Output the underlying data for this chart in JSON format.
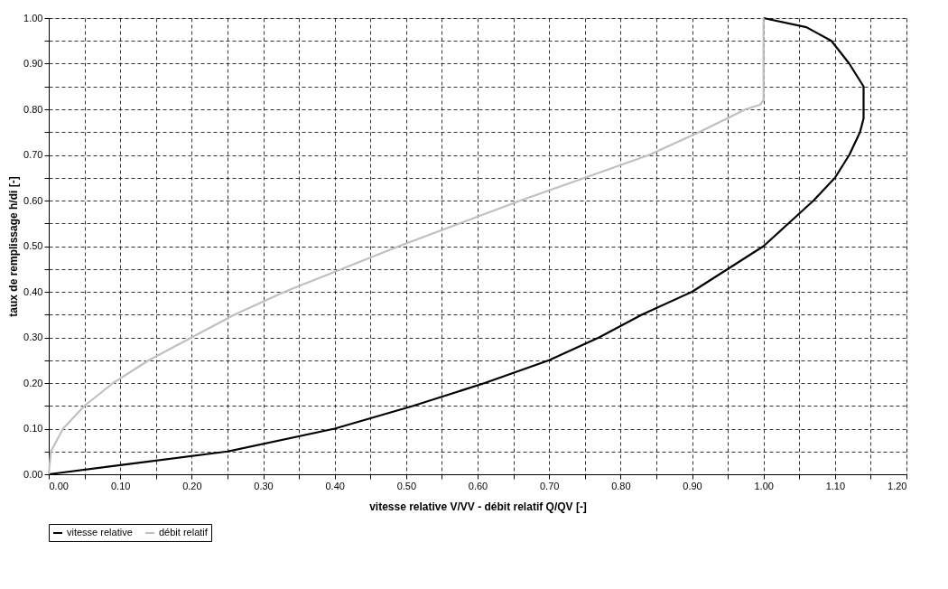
{
  "chart_data": {
    "type": "line",
    "xlabel": "vitesse relative V/VV - débit relatif Q/QV [-]",
    "ylabel": "taux de remplissage h/di [-]",
    "series": [
      {
        "name": "vitesse relative",
        "color": "#000000",
        "x": [
          0,
          0.1,
          0.25,
          0.4,
          0.51,
          0.61,
          0.7,
          0.77,
          0.83,
          0.9,
          0.95,
          1.0,
          1.035,
          1.07,
          1.1,
          1.12,
          1.135,
          1.14,
          1.14,
          1.12,
          1.095,
          1.06,
          1.0
        ],
        "values": [
          0,
          0.02,
          0.05,
          0.1,
          0.15,
          0.2,
          0.25,
          0.3,
          0.35,
          0.4,
          0.45,
          0.5,
          0.55,
          0.6,
          0.65,
          0.7,
          0.75,
          0.78,
          0.85,
          0.9,
          0.95,
          0.98,
          1.0
        ]
      },
      {
        "name": "débit relatif",
        "color": "#c0c0c0",
        "x": [
          0,
          0.003,
          0.02,
          0.05,
          0.09,
          0.14,
          0.2,
          0.26,
          0.33,
          0.41,
          0.49,
          0.575,
          0.66,
          0.75,
          0.84,
          0.91,
          0.975,
          0.995,
          1.0,
          1.0
        ],
        "values": [
          0,
          0.05,
          0.1,
          0.15,
          0.2,
          0.25,
          0.3,
          0.35,
          0.4,
          0.45,
          0.5,
          0.55,
          0.6,
          0.65,
          0.7,
          0.75,
          0.8,
          0.81,
          0.82,
          1.0
        ]
      }
    ],
    "xlim": [
      0,
      1.2
    ],
    "xticks": [
      {
        "value": 0,
        "label": "0.00"
      },
      {
        "value": 0.05,
        "label": null
      },
      {
        "value": 0.1,
        "label": "0.10"
      },
      {
        "value": 0.15,
        "label": null
      },
      {
        "value": 0.2,
        "label": "0.20"
      },
      {
        "value": 0.25,
        "label": null
      },
      {
        "value": 0.3,
        "label": "0.30"
      },
      {
        "value": 0.35,
        "label": null
      },
      {
        "value": 0.4,
        "label": "0.40"
      },
      {
        "value": 0.45,
        "label": null
      },
      {
        "value": 0.5,
        "label": "0.50"
      },
      {
        "value": 0.55,
        "label": null
      },
      {
        "value": 0.6,
        "label": "0.60"
      },
      {
        "value": 0.65,
        "label": null
      },
      {
        "value": 0.7,
        "label": "0.70"
      },
      {
        "value": 0.75,
        "label": null
      },
      {
        "value": 0.8,
        "label": "0.80"
      },
      {
        "value": 0.85,
        "label": null
      },
      {
        "value": 0.9,
        "label": "0.90"
      },
      {
        "value": 0.95,
        "label": null
      },
      {
        "value": 1.0,
        "label": "1.00"
      },
      {
        "value": 1.05,
        "label": null
      },
      {
        "value": 1.1,
        "label": "1.10"
      },
      {
        "value": 1.15,
        "label": null
      },
      {
        "value": 1.2,
        "label": "1.20"
      }
    ],
    "ylim": [
      0,
      1.0
    ],
    "yticks": [
      {
        "value": 0,
        "label": "0.00"
      },
      {
        "value": 0.05,
        "label": null
      },
      {
        "value": 0.1,
        "label": "0.10"
      },
      {
        "value": 0.15,
        "label": null
      },
      {
        "value": 0.2,
        "label": "0.20"
      },
      {
        "value": 0.25,
        "label": null
      },
      {
        "value": 0.3,
        "label": "0.30"
      },
      {
        "value": 0.35,
        "label": null
      },
      {
        "value": 0.4,
        "label": "0.40"
      },
      {
        "value": 0.45,
        "label": null
      },
      {
        "value": 0.5,
        "label": "0.50"
      },
      {
        "value": 0.55,
        "label": null
      },
      {
        "value": 0.6,
        "label": "0.60"
      },
      {
        "value": 0.65,
        "label": null
      },
      {
        "value": 0.7,
        "label": "0.70"
      },
      {
        "value": 0.75,
        "label": null
      },
      {
        "value": 0.8,
        "label": "0.80"
      },
      {
        "value": 0.85,
        "label": null
      },
      {
        "value": 0.9,
        "label": "0.90"
      },
      {
        "value": 0.95,
        "label": null
      },
      {
        "value": 1.0,
        "label": "1.00"
      }
    ],
    "grid": true,
    "legend": "bottom",
    "marker": "none",
    "line_style": "solid"
  }
}
